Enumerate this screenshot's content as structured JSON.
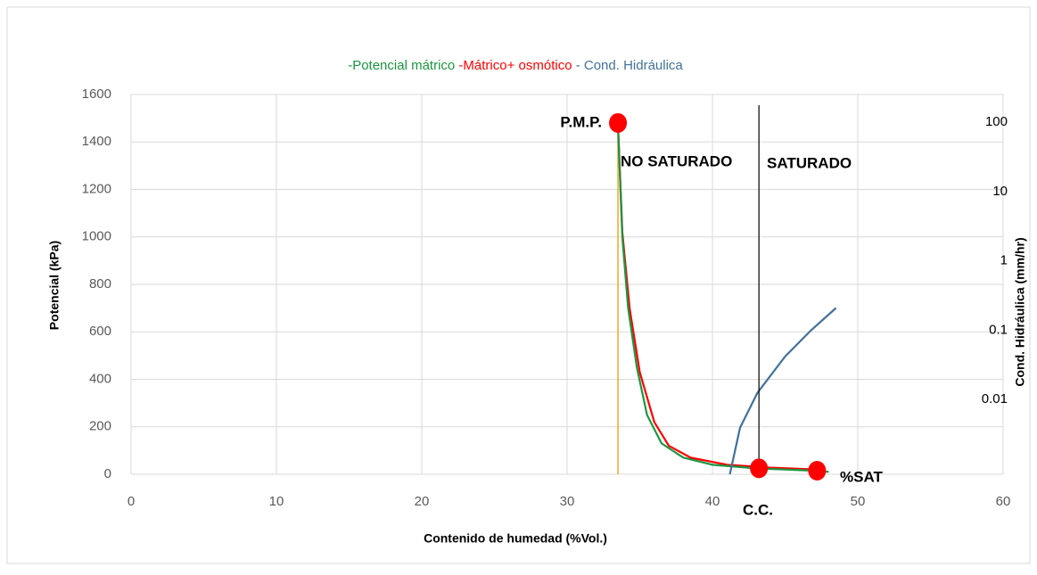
{
  "chart_data": {
    "type": "line",
    "legend_title": null,
    "xlabel": "Contenido de humedad (%Vol.)",
    "ylabel": "Potencial (kPa)",
    "y2label": "Cond. Hidráulica (mm/hr)",
    "xlim": [
      0,
      60
    ],
    "xticks": [
      0,
      10,
      20,
      30,
      40,
      50,
      60
    ],
    "ylim": [
      0,
      1600
    ],
    "yticks": [
      0,
      200,
      400,
      600,
      800,
      1000,
      1200,
      1400,
      1600
    ],
    "y2lim": [
      0.001,
      300
    ],
    "y2ticks": [
      0.01,
      0.1,
      1,
      10,
      100
    ],
    "y2log": true,
    "grid": true,
    "series": [
      {
        "name": "-Potencial mátrico",
        "color": "#1a9641",
        "x": [
          33.5,
          33.8,
          34.2,
          34.8,
          35.5,
          36.5,
          38,
          40,
          43,
          47,
          48
        ],
        "values": [
          1470,
          1000,
          700,
          450,
          250,
          130,
          70,
          40,
          25,
          15,
          10
        ]
      },
      {
        "name": "-Mátrico+ osmótico",
        "color": "#ff0000",
        "x": [
          33.5,
          33.8,
          34.3,
          35,
          36,
          37,
          38.5,
          41,
          44,
          47.2
        ],
        "values": [
          1480,
          1020,
          700,
          430,
          220,
          120,
          70,
          40,
          28,
          20
        ]
      },
      {
        "name": "- Cond. Hidráulica",
        "color": "#41719c",
        "axis": "y2",
        "x": [
          41.2,
          41.9,
          43.1,
          45,
          46.8,
          48.5
        ],
        "values": [
          0.001,
          0.0047,
          0.015,
          0.05,
          0.12,
          0.25
        ]
      }
    ],
    "vlines": [
      {
        "x": 33.5,
        "color": "#f5a623"
      },
      {
        "x": 43.2,
        "color": "#000000"
      }
    ],
    "points": [
      {
        "x": 33.5,
        "y": 1480
      },
      {
        "x": 43.2,
        "y": 25
      },
      {
        "x": 47.2,
        "y": 15
      }
    ],
    "point_color": "#ff0000",
    "annotations": [
      "P.M.P.",
      "NO SATURADO",
      "SATURADO",
      "C.C.",
      "%SAT"
    ]
  }
}
